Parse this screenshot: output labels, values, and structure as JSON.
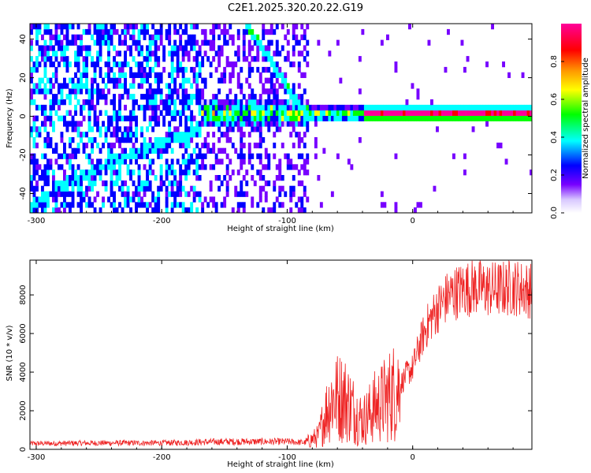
{
  "title": "C2E1.2025.320.20.22.G19",
  "colors": {
    "snr_line": "#ee2222",
    "axis": "#000000"
  },
  "chart_data": [
    {
      "type": "heatmap",
      "title": "C2E1.2025.320.20.22.G19",
      "xlabel": "Height of straight line (km)",
      "ylabel": "Frequency (Hz)",
      "xlim": [
        -305,
        95
      ],
      "ylim": [
        -50,
        48
      ],
      "x_ticks": [
        -300,
        -200,
        -100,
        0
      ],
      "y_ticks": [
        -40,
        -20,
        0,
        20,
        40
      ],
      "colorbar": {
        "label": "Normalized spectral amplitude",
        "range": [
          0,
          1
        ],
        "ticks": [
          0.0,
          0.2,
          0.4,
          0.6,
          0.8
        ]
      },
      "grid": false
    },
    {
      "type": "line",
      "title": "",
      "xlabel": "Height of straight line (km)",
      "ylabel": "SNR (10 * v/v)",
      "xlim": [
        -305,
        95
      ],
      "ylim": [
        0,
        9800
      ],
      "x_ticks": [
        -300,
        -200,
        -100,
        0
      ],
      "y_ticks": [
        0,
        2000,
        4000,
        6000,
        8000
      ],
      "series": [
        {
          "name": "SNR",
          "x": [
            -305,
            -250,
            -200,
            -150,
            -100,
            -85,
            -75,
            -70,
            -65,
            -60,
            -55,
            -50,
            -45,
            -40,
            -35,
            -30,
            -25,
            -20,
            -15,
            -10,
            -5,
            0,
            5,
            10,
            15,
            20,
            25,
            30,
            40,
            50,
            60,
            70,
            80,
            90,
            95
          ],
          "values": [
            300,
            330,
            330,
            400,
            400,
            350,
            700,
            1800,
            2600,
            2700,
            2700,
            2300,
            1900,
            1500,
            1800,
            2200,
            2400,
            2700,
            3000,
            3300,
            3900,
            4200,
            5300,
            6200,
            6800,
            7300,
            7700,
            8000,
            8300,
            8400,
            8300,
            8300,
            8400,
            8300,
            8200
          ]
        }
      ],
      "grid": false
    }
  ]
}
